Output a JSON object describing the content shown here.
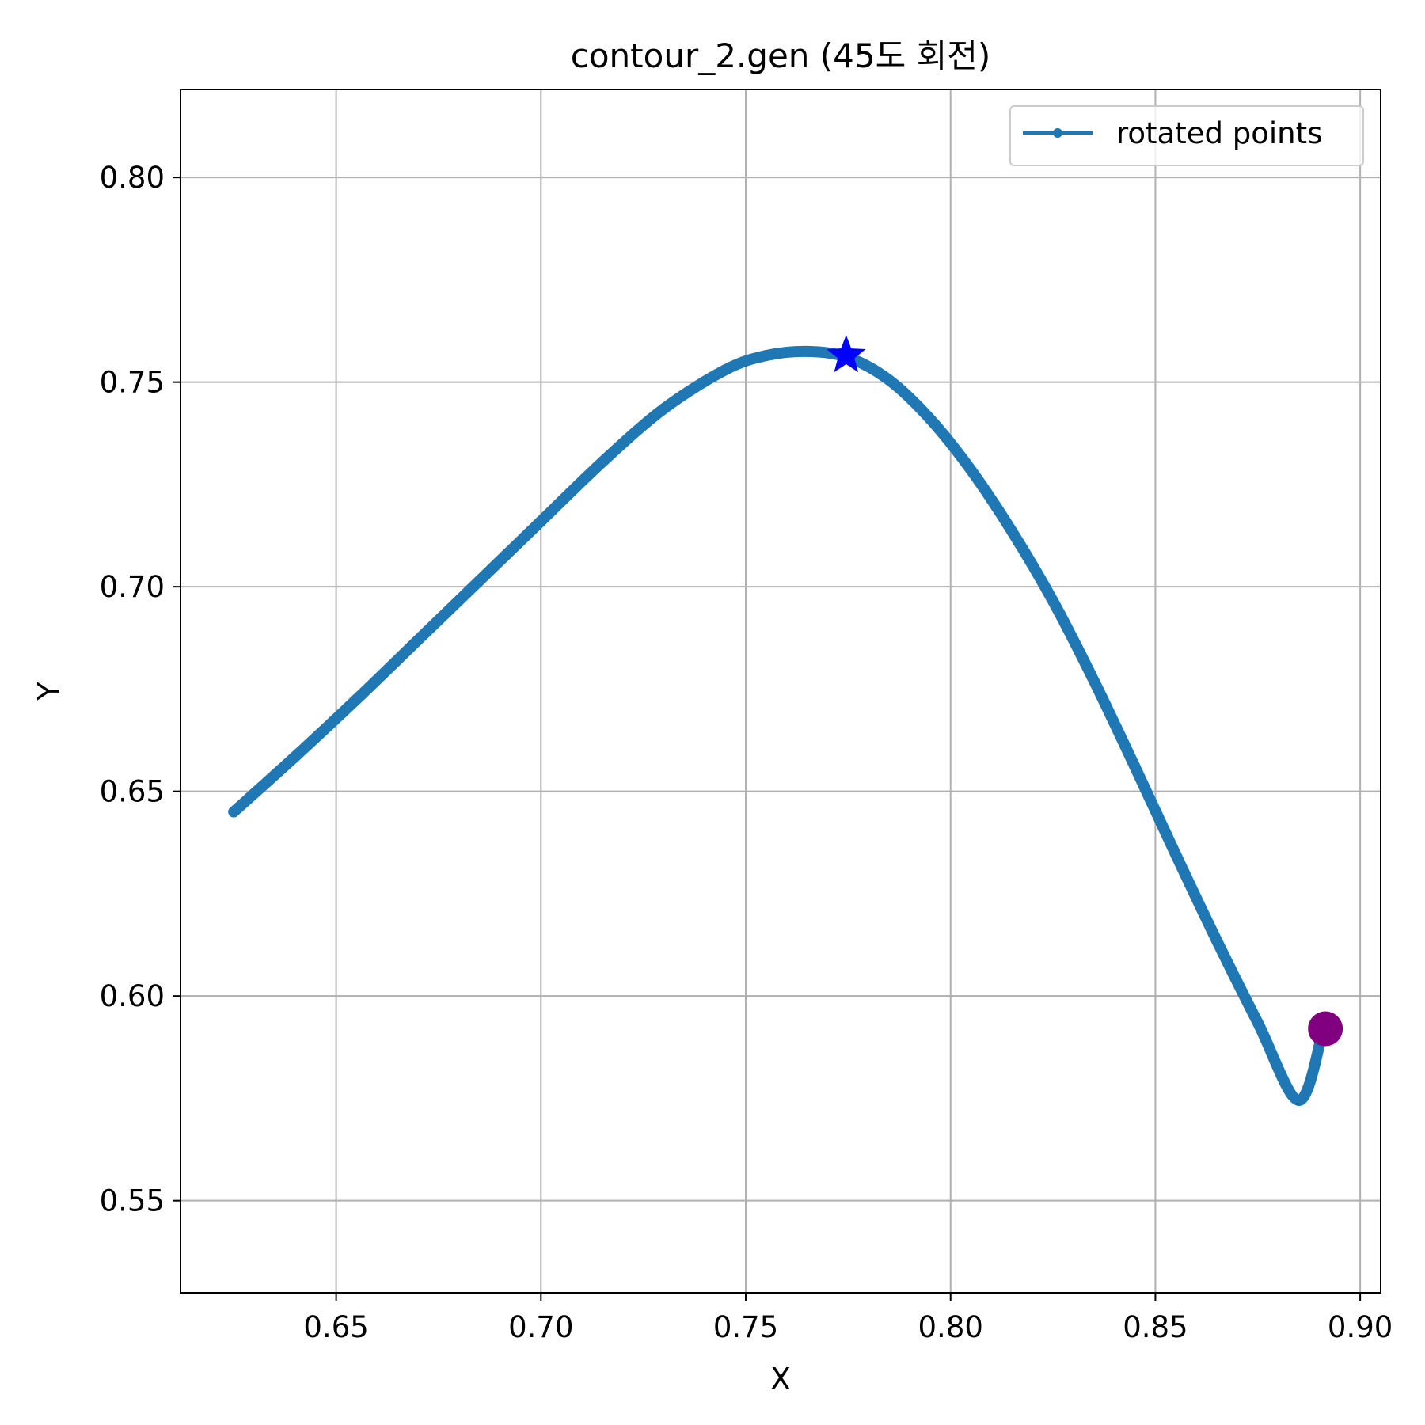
{
  "chart_data": {
    "type": "line",
    "title": "contour_2.gen (45도 회전)",
    "xlabel": "X",
    "ylabel": "Y",
    "xlim": [
      0.612,
      0.905
    ],
    "ylim": [
      0.5275,
      0.8215
    ],
    "grid": true,
    "x_ticks": [
      0.65,
      0.7,
      0.75,
      0.8,
      0.85,
      0.9
    ],
    "x_tick_labels": [
      "0.65",
      "0.70",
      "0.75",
      "0.80",
      "0.85",
      "0.90"
    ],
    "y_ticks": [
      0.55,
      0.6,
      0.65,
      0.7,
      0.75,
      0.8
    ],
    "y_tick_labels": [
      "0.55",
      "0.60",
      "0.65",
      "0.70",
      "0.75",
      "0.80"
    ],
    "legend": {
      "position": "top-right",
      "entries": [
        "rotated points"
      ]
    },
    "series": [
      {
        "name": "rotated points",
        "color": "#1f77b4",
        "x": [
          0.625,
          0.64,
          0.655,
          0.67,
          0.685,
          0.7,
          0.715,
          0.73,
          0.745,
          0.755,
          0.765,
          0.775,
          0.785,
          0.795,
          0.805,
          0.815,
          0.825,
          0.835,
          0.845,
          0.855,
          0.865,
          0.875,
          0.885,
          0.891
        ],
        "y": [
          0.645,
          0.6585,
          0.6725,
          0.687,
          0.7015,
          0.716,
          0.7305,
          0.7435,
          0.753,
          0.7565,
          0.7575,
          0.756,
          0.7505,
          0.741,
          0.7285,
          0.7135,
          0.6965,
          0.677,
          0.656,
          0.6345,
          0.6135,
          0.5935,
          0.5745,
          0.592
        ]
      }
    ],
    "markers": [
      {
        "name": "star marker",
        "shape": "star",
        "color": "#0000ff",
        "x": 0.7745,
        "y": 0.7565
      },
      {
        "name": "end marker",
        "shape": "circle",
        "color": "#800080",
        "x": 0.8915,
        "y": 0.592
      }
    ]
  }
}
